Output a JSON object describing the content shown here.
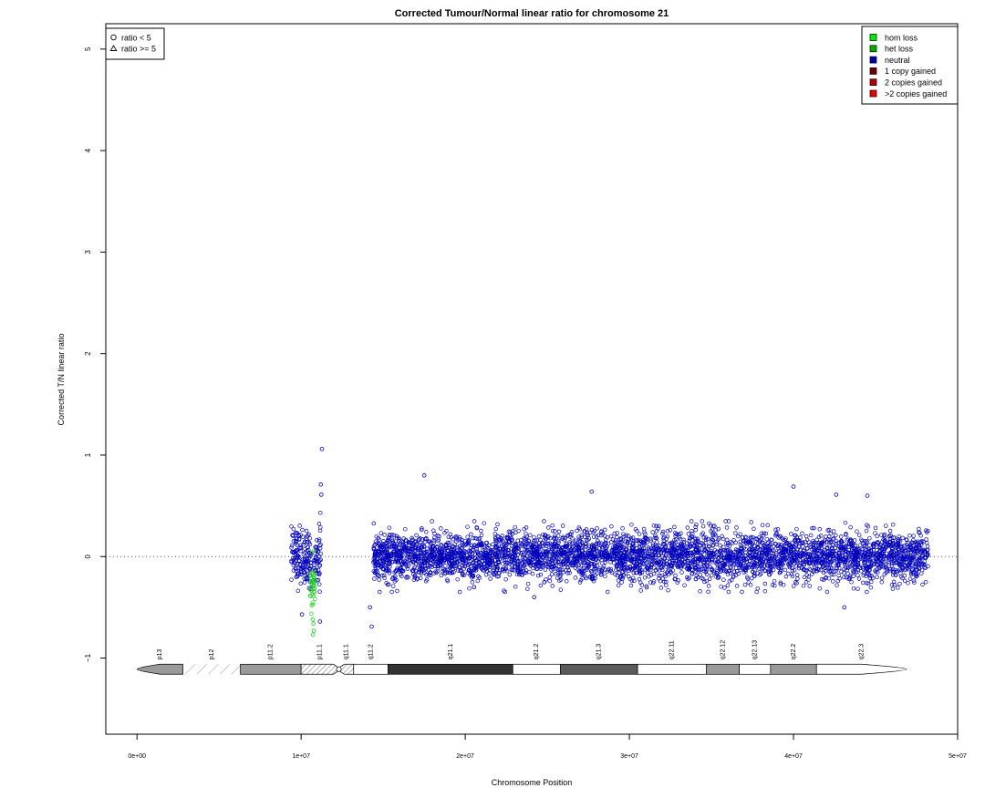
{
  "chart_data": {
    "type": "scatter",
    "title": "Corrected Tumour/Normal linear ratio for chromosome  21",
    "xlabel": "Chromosome Position",
    "ylabel": "Corrected T/N linear ratio",
    "xlim": [
      -1900000,
      50000000
    ],
    "ylim": [
      -1.75,
      5.25
    ],
    "x_ticks": [
      0,
      10000000,
      20000000,
      30000000,
      40000000,
      50000000
    ],
    "x_tick_labels": [
      "0e+00",
      "1e+07",
      "2e+07",
      "3e+07",
      "4e+07",
      "5e+07"
    ],
    "y_ticks": [
      -1,
      0,
      1,
      2,
      3,
      4,
      5
    ],
    "y_tick_labels": [
      "−1",
      "0",
      "1",
      "2",
      "3",
      "4",
      "5"
    ],
    "reference_line_y": 0,
    "grid": false,
    "shape_legend": {
      "placement": "top-left",
      "entries": [
        {
          "label": "ratio < 5",
          "shape": "circle"
        },
        {
          "label": "ratio >= 5",
          "shape": "triangle"
        }
      ]
    },
    "state_legend": {
      "placement": "top-right",
      "entries": [
        {
          "label": "hom loss",
          "color": "#00ee00"
        },
        {
          "label": "het loss",
          "color": "#00b000"
        },
        {
          "label": "neutral",
          "color": "#0000aa"
        },
        {
          "label": "1 copy gained",
          "color": "#6e0000"
        },
        {
          "label": "2 copies gained",
          "color": "#b30000"
        },
        {
          "label": ">2 copies gained",
          "color": "#ee0000"
        }
      ]
    },
    "colors": {
      "neutral": "#0000bb",
      "het_loss": "#22cc22",
      "axis": "#000000",
      "reference_line": "#555555"
    },
    "series": [
      {
        "state": "neutral",
        "segments": [
          {
            "x_range": [
              9400000,
              10600000
            ],
            "mean": 0.0,
            "sd": 0.14
          },
          {
            "x_range": [
              10800000,
              11200000
            ],
            "mean": 0.0,
            "sd": 0.15
          },
          {
            "x_range": [
              14400000,
              48200000
            ],
            "mean": 0.0,
            "sd": 0.12
          }
        ],
        "outliers": [
          {
            "x": 11270000,
            "y": 1.06
          },
          {
            "x": 17500000,
            "y": 0.8
          },
          {
            "x": 11200000,
            "y": 0.71
          },
          {
            "x": 11230000,
            "y": 0.61
          },
          {
            "x": 27700000,
            "y": 0.64
          },
          {
            "x": 40000000,
            "y": 0.69
          },
          {
            "x": 42600000,
            "y": 0.61
          },
          {
            "x": 44500000,
            "y": 0.6
          },
          {
            "x": 14300000,
            "y": -0.69
          },
          {
            "x": 10050000,
            "y": -0.57
          },
          {
            "x": 11150000,
            "y": -0.64
          },
          {
            "x": 43100000,
            "y": -0.5
          },
          {
            "x": 24200000,
            "y": -0.4
          },
          {
            "x": 14200000,
            "y": -0.5
          }
        ]
      },
      {
        "state": "het loss",
        "segments": [
          {
            "x_range": [
              10550000,
              10850000
            ],
            "mean": -0.3,
            "sd": 0.13
          }
        ],
        "outliers": [
          {
            "x": 10700000,
            "y": -0.62
          },
          {
            "x": 10750000,
            "y": -0.66
          },
          {
            "x": 10780000,
            "y": -0.73
          },
          {
            "x": 10720000,
            "y": -0.77
          }
        ]
      }
    ],
    "ideogram": {
      "y": -1.11,
      "bands": [
        {
          "name": "p13",
          "start": 0,
          "end": 2800000,
          "stain": "gpos50"
        },
        {
          "name": "p12",
          "start": 2800000,
          "end": 6300000,
          "stain": "stalk"
        },
        {
          "name": "p11.2",
          "start": 6300000,
          "end": 10000000,
          "stain": "gpos50"
        },
        {
          "name": "p11.1",
          "start": 10000000,
          "end": 12300000,
          "stain": "acen"
        },
        {
          "name": "q11.1",
          "start": 12300000,
          "end": 13200000,
          "stain": "acen"
        },
        {
          "name": "q11.2",
          "start": 13200000,
          "end": 15300000,
          "stain": "gneg"
        },
        {
          "name": "q21.1",
          "start": 15300000,
          "end": 22900000,
          "stain": "gpos100"
        },
        {
          "name": "q21.2",
          "start": 22900000,
          "end": 25800000,
          "stain": "gneg"
        },
        {
          "name": "q21.3",
          "start": 25800000,
          "end": 30500000,
          "stain": "gpos75"
        },
        {
          "name": "q22.11",
          "start": 30500000,
          "end": 34700000,
          "stain": "gneg"
        },
        {
          "name": "q22.12",
          "start": 34700000,
          "end": 36700000,
          "stain": "gpos50"
        },
        {
          "name": "q22.13",
          "start": 36700000,
          "end": 38600000,
          "stain": "gneg"
        },
        {
          "name": "q22.2",
          "start": 38600000,
          "end": 41400000,
          "stain": "gpos50"
        },
        {
          "name": "q22.3",
          "start": 41400000,
          "end": 46900000,
          "stain": "gneg"
        }
      ]
    }
  }
}
